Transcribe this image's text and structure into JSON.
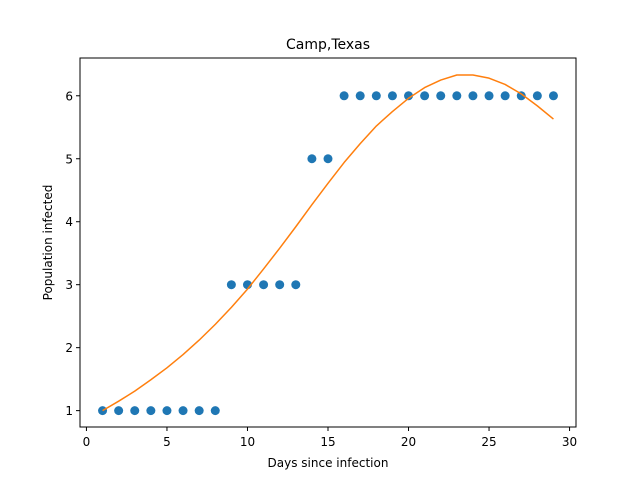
{
  "chart_data": {
    "type": "scatter",
    "title": "Camp,Texas",
    "xlabel": "Days since infection",
    "ylabel": "Population infected",
    "xlim": [
      -0.4,
      30.4
    ],
    "ylim": [
      0.74,
      6.6
    ],
    "xticks": [
      0,
      5,
      10,
      15,
      20,
      25,
      30
    ],
    "yticks": [
      1,
      2,
      3,
      4,
      5,
      6
    ],
    "grid": false,
    "legend": "none",
    "series": [
      {
        "kind": "scatter",
        "color": "#1f77b4",
        "x": [
          1,
          2,
          3,
          4,
          5,
          6,
          7,
          8,
          9,
          10,
          11,
          12,
          13,
          14,
          15,
          16,
          17,
          18,
          19,
          20,
          21,
          22,
          23,
          24,
          25,
          26,
          27,
          28,
          29
        ],
        "y": [
          1,
          1,
          1,
          1,
          1,
          1,
          1,
          1,
          3,
          3,
          3,
          3,
          3,
          5,
          5,
          6,
          6,
          6,
          6,
          6,
          6,
          6,
          6,
          6,
          6,
          6,
          6,
          6,
          6
        ]
      },
      {
        "kind": "line",
        "color": "#ff7f0e",
        "x": [
          1,
          2,
          3,
          4,
          5,
          6,
          7,
          8,
          9,
          10,
          11,
          12,
          13,
          14,
          15,
          16,
          17,
          18,
          19,
          20,
          21,
          22,
          23,
          24,
          25,
          26,
          27,
          28,
          29
        ],
        "y": [
          1.0,
          1.15,
          1.31,
          1.49,
          1.68,
          1.89,
          2.12,
          2.37,
          2.64,
          2.93,
          3.25,
          3.58,
          3.92,
          4.27,
          4.61,
          4.94,
          5.24,
          5.52,
          5.75,
          5.96,
          6.13,
          6.25,
          6.33,
          6.33,
          6.28,
          6.18,
          6.03,
          5.84,
          5.63
        ]
      }
    ]
  }
}
